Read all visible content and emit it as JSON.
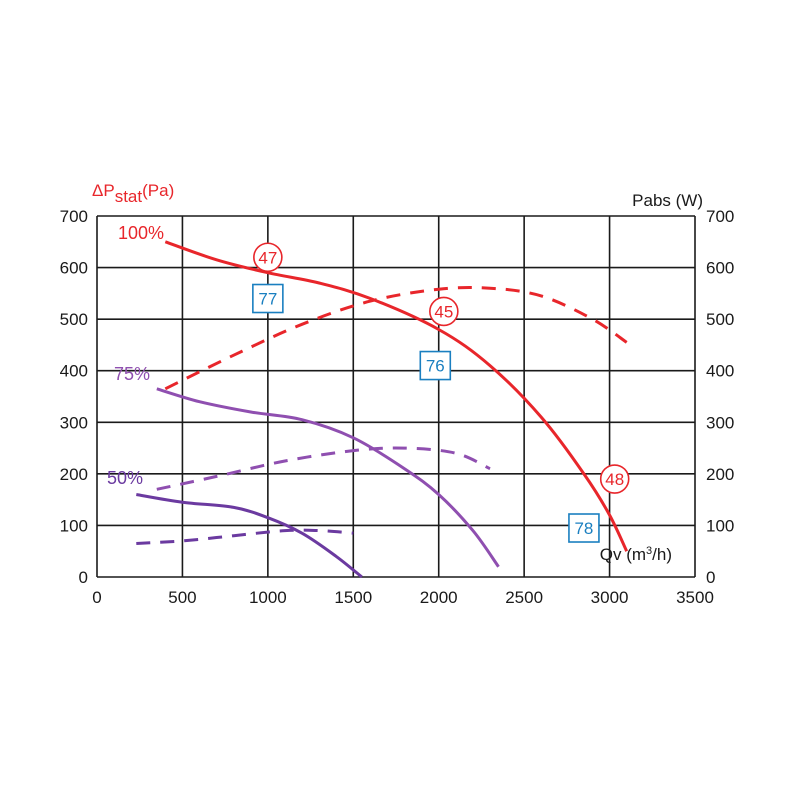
{
  "chart_data": {
    "type": "line",
    "left_axis": {
      "label_main": "ΔP",
      "label_sub": "stat",
      "label_unit": "(Pa)",
      "ylim": [
        0,
        700
      ],
      "ticks": [
        0,
        100,
        200,
        300,
        400,
        500,
        600,
        700
      ]
    },
    "right_axis": {
      "label": "Pabs (W)",
      "ylim": [
        0,
        700
      ],
      "ticks": [
        0,
        100,
        200,
        300,
        400,
        500,
        600,
        700
      ]
    },
    "x_axis": {
      "label_main": "Qv (m",
      "label_sup": "3",
      "label_end": "/h)",
      "xlim": [
        0,
        3500
      ],
      "ticks": [
        0,
        500,
        1000,
        1500,
        2000,
        2500,
        3000,
        3500
      ]
    },
    "grid": true,
    "colors": {
      "red": "#e8262b",
      "purple": "#8f4fb0",
      "purple_dark": "#6b3aa0",
      "blue": "#1a7fc0"
    },
    "series": [
      {
        "name": "100%",
        "kind": "pressure",
        "color": "#e8262b",
        "x": [
          400,
          700,
          1000,
          1300,
          1600,
          2000,
          2300,
          2600,
          2850,
          3000,
          3100
        ],
        "y": [
          650,
          615,
          590,
          570,
          540,
          480,
          410,
          310,
          200,
          120,
          50
        ]
      },
      {
        "name": "100%",
        "kind": "power",
        "color": "#e8262b",
        "x": [
          400,
          800,
          1200,
          1600,
          2000,
          2300,
          2600,
          2900,
          3100
        ],
        "y": [
          365,
          430,
          490,
          535,
          558,
          560,
          545,
          500,
          455
        ]
      },
      {
        "name": "75%",
        "kind": "pressure",
        "color": "#8f4fb0",
        "x": [
          350,
          600,
          900,
          1200,
          1500,
          1800,
          2000,
          2200,
          2350
        ],
        "y": [
          365,
          340,
          320,
          305,
          270,
          210,
          160,
          90,
          20
        ]
      },
      {
        "name": "75%",
        "kind": "power",
        "color": "#8f4fb0",
        "x": [
          350,
          700,
          1100,
          1500,
          1800,
          2100,
          2300
        ],
        "y": [
          170,
          195,
          225,
          245,
          250,
          240,
          210
        ]
      },
      {
        "name": "50%",
        "kind": "pressure",
        "color": "#6b3aa0",
        "x": [
          230,
          500,
          800,
          1000,
          1200,
          1400,
          1550
        ],
        "y": [
          160,
          145,
          135,
          115,
          85,
          40,
          0
        ]
      },
      {
        "name": "50%",
        "kind": "power",
        "color": "#6b3aa0",
        "x": [
          230,
          500,
          800,
          1100,
          1300,
          1500
        ],
        "y": [
          65,
          70,
          80,
          90,
          90,
          85
        ]
      }
    ],
    "series_labels": [
      {
        "text": "100%",
        "color": "#e8262b"
      },
      {
        "text": "75%",
        "color": "#8f4fb0"
      },
      {
        "text": "50%",
        "color": "#6b3aa0"
      }
    ],
    "circle_markers": [
      {
        "text": "47",
        "x": 1000,
        "y": 620,
        "color": "#e8262b"
      },
      {
        "text": "45",
        "x": 2030,
        "y": 515,
        "color": "#e8262b"
      },
      {
        "text": "48",
        "x": 3030,
        "y": 190,
        "color": "#e8262b"
      }
    ],
    "square_markers": [
      {
        "text": "77",
        "x": 1000,
        "y": 540,
        "color": "#1a7fc0"
      },
      {
        "text": "76",
        "x": 1980,
        "y": 410,
        "color": "#1a7fc0"
      },
      {
        "text": "78",
        "x": 2850,
        "y": 95,
        "color": "#1a7fc0"
      }
    ]
  }
}
